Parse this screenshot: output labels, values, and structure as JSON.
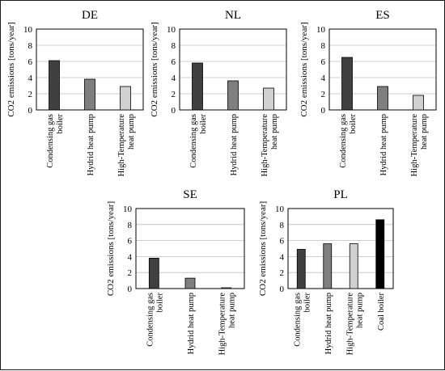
{
  "chart_data": [
    {
      "type": "bar",
      "title": "DE",
      "ylabel": "CO2 emissions [tons/year]",
      "ylim": [
        0,
        10
      ],
      "yticks": [
        0,
        2,
        4,
        6,
        8,
        10
      ],
      "grid": true,
      "categories": [
        [
          "Condensing gas",
          "boiler"
        ],
        [
          "Hydrid heat pump"
        ],
        [
          "High-Temperature",
          "heat pump"
        ]
      ],
      "values": [
        6.1,
        3.8,
        2.9
      ],
      "bar_colors": [
        "#404040",
        "#7f7f7f",
        "#d0d0d0"
      ]
    },
    {
      "type": "bar",
      "title": "NL",
      "ylabel": "CO2 emissions [tons/year]",
      "ylim": [
        0,
        10
      ],
      "yticks": [
        0,
        2,
        4,
        6,
        8,
        10
      ],
      "grid": true,
      "categories": [
        [
          "Condensing gas",
          "boiler"
        ],
        [
          "Hydrid heat pump"
        ],
        [
          "High-Temperature",
          "heat pump"
        ]
      ],
      "values": [
        5.8,
        3.6,
        2.7
      ],
      "bar_colors": [
        "#404040",
        "#7f7f7f",
        "#d0d0d0"
      ]
    },
    {
      "type": "bar",
      "title": "ES",
      "ylabel": "CO2 emissions [tons/year]",
      "ylim": [
        0,
        10
      ],
      "yticks": [
        0,
        2,
        4,
        6,
        8,
        10
      ],
      "grid": true,
      "categories": [
        [
          "Condensing gas",
          "boiler"
        ],
        [
          "Hydrid heat pump"
        ],
        [
          "High-Temperature",
          "heat pump"
        ]
      ],
      "values": [
        6.5,
        2.9,
        1.8
      ],
      "bar_colors": [
        "#404040",
        "#7f7f7f",
        "#d0d0d0"
      ]
    },
    {
      "type": "bar",
      "title": "SE",
      "ylabel": "CO2 emissions [tons/year]",
      "ylim": [
        0,
        10
      ],
      "yticks": [
        0,
        2,
        4,
        6,
        8,
        10
      ],
      "grid": true,
      "categories": [
        [
          "Condensing gas",
          "boiler"
        ],
        [
          "Hydrid heat pump"
        ],
        [
          "High-Temperature",
          "heat pump"
        ]
      ],
      "values": [
        3.8,
        1.3,
        0.1
      ],
      "bar_colors": [
        "#404040",
        "#7f7f7f",
        "#d0d0d0"
      ]
    },
    {
      "type": "bar",
      "title": "PL",
      "ylabel": "CO2 emissions [tons/year]",
      "ylim": [
        0,
        10
      ],
      "yticks": [
        0,
        2,
        4,
        6,
        8,
        10
      ],
      "grid": true,
      "categories": [
        [
          "Condensing gas",
          "boiler"
        ],
        [
          "Hydrid heat pump"
        ],
        [
          "High-Temperature",
          "heat pump"
        ],
        [
          "Coal boiler"
        ]
      ],
      "values": [
        4.9,
        5.6,
        5.6,
        8.6
      ],
      "bar_colors": [
        "#404040",
        "#7f7f7f",
        "#d0d0d0",
        "#000000"
      ]
    }
  ]
}
